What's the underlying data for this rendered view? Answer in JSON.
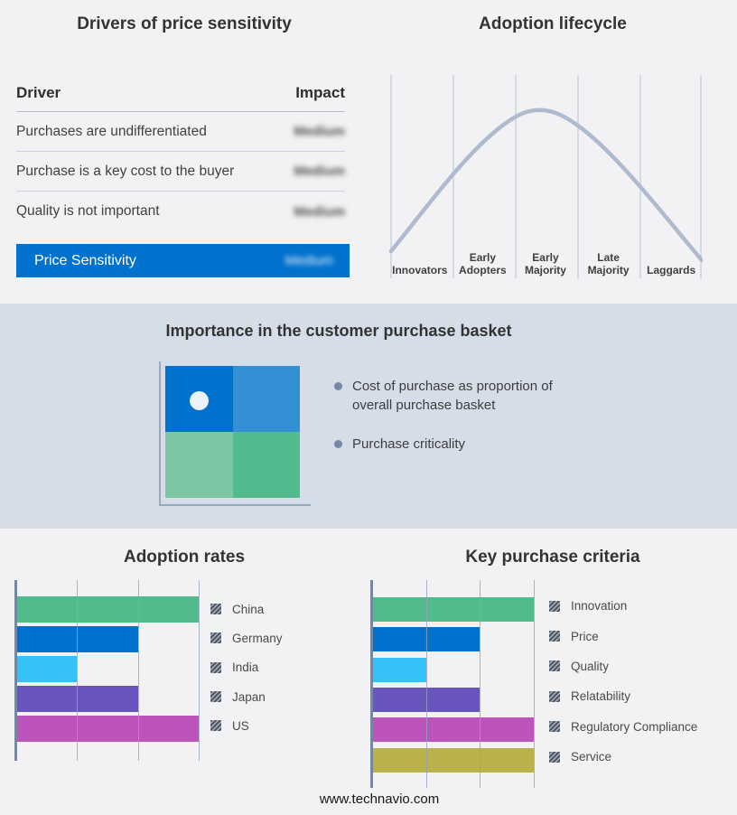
{
  "footer": "www.technavio.com",
  "drivers_panel": {
    "title": "Drivers of price sensitivity",
    "columns": {
      "driver": "Driver",
      "impact": "Impact"
    },
    "rows": [
      {
        "driver": "Purchases are undifferentiated",
        "impact": "Medium",
        "impact_blurred": true
      },
      {
        "driver": "Purchase is a key cost to the buyer",
        "impact": "Medium",
        "impact_blurred": true
      },
      {
        "driver": "Quality is not important",
        "impact": "Medium",
        "impact_blurred": true
      }
    ],
    "highlight": {
      "driver": "Price Sensitivity",
      "impact": "Medium",
      "impact_blurred": true,
      "background": "#0071cd"
    }
  },
  "lifecycle_panel": {
    "title": "Adoption lifecycle",
    "stages": [
      "Innovators",
      "Early Adopters",
      "Early Majority",
      "Late Majority",
      "Laggards"
    ],
    "curve_color": "#aebbce",
    "curve_shape": "bell"
  },
  "basket_panel": {
    "title": "Importance in the customer purchase basket",
    "background": "#d5dde9",
    "quadrant_colors": [
      "#0071cd",
      "#3390d5",
      "#7dc6a3",
      "#52bb8d"
    ],
    "bullets": [
      "Cost of purchase as proportion of overall purchase basket",
      "Purchase criticality"
    ]
  },
  "chart_data": [
    {
      "id": "adoption_rates",
      "type": "bar",
      "title": "Adoption rates",
      "orientation": "horizontal",
      "categories": [
        "China",
        "Germany",
        "India",
        "Japan",
        "US"
      ],
      "values": [
        3,
        2,
        1,
        2,
        3
      ],
      "xlim": [
        0,
        3
      ],
      "colors": [
        "#52bb8c",
        "#0072ce",
        "#35c2f7",
        "#6955bd",
        "#bc54bc"
      ],
      "grid": true,
      "axis_tick_labels_shown": false,
      "legend_position": "right"
    },
    {
      "id": "key_purchase_criteria",
      "type": "bar",
      "title": "Key purchase criteria",
      "orientation": "horizontal",
      "categories": [
        "Innovation",
        "Price",
        "Quality",
        "Relatability",
        "Regulatory Compliance",
        "Service"
      ],
      "values": [
        3,
        2,
        1,
        2,
        3,
        3
      ],
      "xlim": [
        0,
        3
      ],
      "colors": [
        "#52bb8c",
        "#0072ce",
        "#35c2f7",
        "#6955bd",
        "#bc54bc",
        "#b9b14a"
      ],
      "grid": true,
      "axis_tick_labels_shown": false,
      "legend_position": "right"
    }
  ]
}
